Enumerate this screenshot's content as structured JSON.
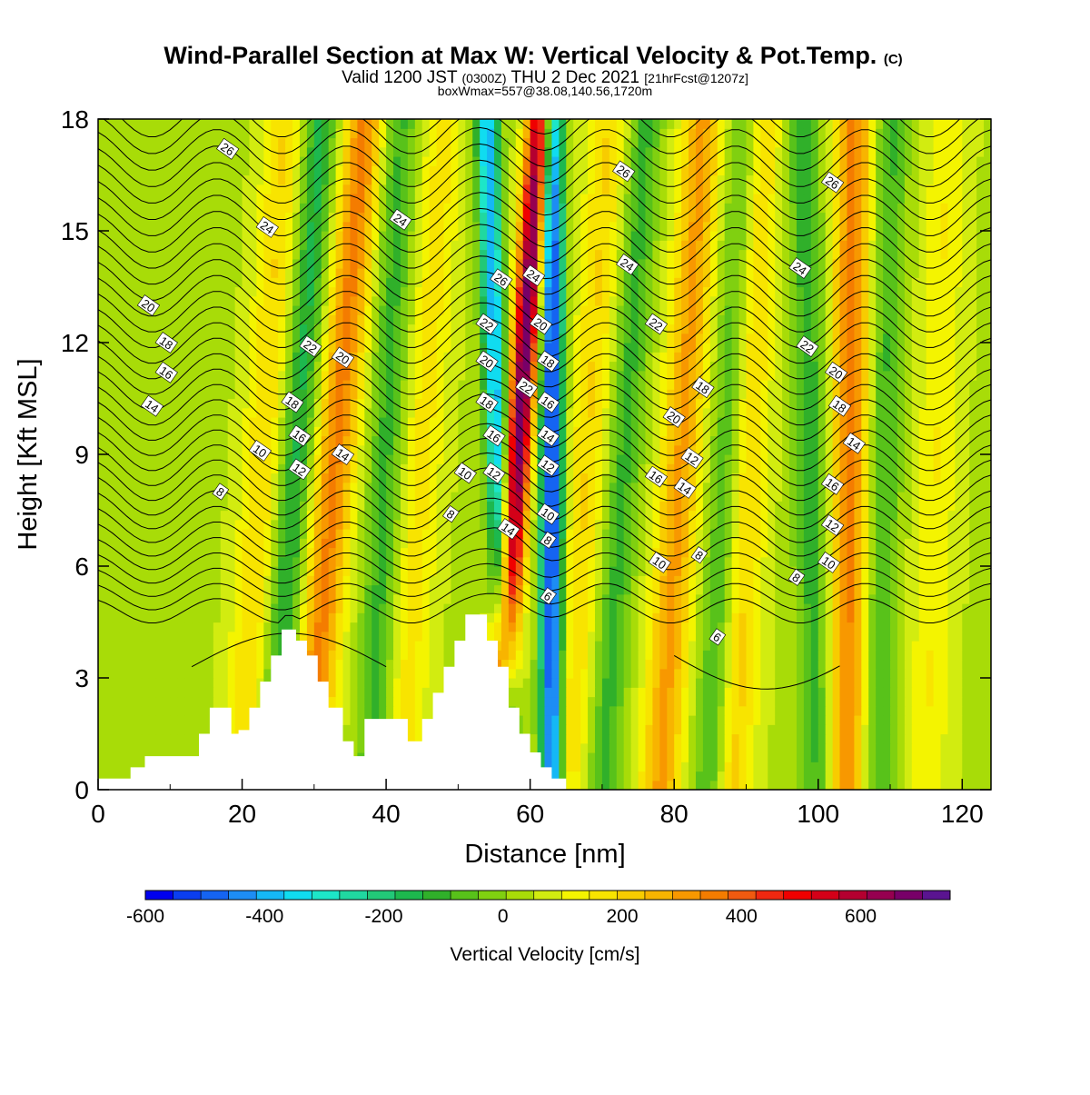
{
  "chart_data": {
    "type": "heatmap",
    "title": "Wind-Parallel Section at Max W: Vertical Velocity & Pot.Temp.",
    "title_mark": "(C)",
    "subtitle": {
      "prefix": "Valid 1200 JST ",
      "utc": "(0300Z)",
      "date": " THU 2 Dec 2021 ",
      "forecast": "[21hrFcst@1207z]"
    },
    "subtitle2": "boxWmax=557@38.08,140.56,1720m",
    "xlabel": "Distance [nm]",
    "ylabel": "Height [Kft MSL]",
    "xlim": [
      0,
      124
    ],
    "ylim": [
      0,
      18
    ],
    "xticks": [
      0,
      20,
      40,
      60,
      80,
      100,
      120
    ],
    "yticks": [
      0,
      3,
      6,
      9,
      12,
      15,
      18
    ],
    "colorbar": {
      "label": "Vertical Velocity [cm/s]",
      "range": [
        -600,
        750
      ],
      "ticks": [
        -600,
        -400,
        -200,
        0,
        200,
        400,
        600
      ],
      "colors": [
        "#0000ee",
        "#0b3ef0",
        "#1564f2",
        "#1d8df4",
        "#15b8f5",
        "#10dcf0",
        "#1de6c8",
        "#20d8a0",
        "#22c878",
        "#1db84e",
        "#30b02a",
        "#58c21a",
        "#80d010",
        "#a8dc08",
        "#d2ec10",
        "#f4f400",
        "#f8e400",
        "#f8cc00",
        "#f8b400",
        "#f89800",
        "#f47c00",
        "#f05a10",
        "#f02810",
        "#f00000",
        "#d40018",
        "#b40030",
        "#960050",
        "#780068",
        "#5a1490"
      ]
    },
    "updraft_bands": [
      {
        "x_surface": 20,
        "x_top": 26,
        "peak": 150
      },
      {
        "x_surface": 29,
        "x_top": 37,
        "peak": 300
      },
      {
        "x_surface": 42,
        "x_top": 48,
        "peak": 120
      },
      {
        "x_surface": 55,
        "x_top": 61.5,
        "peak": 650
      },
      {
        "x_surface": 65,
        "x_top": 71,
        "peak": 150
      },
      {
        "x_surface": 78,
        "x_top": 84,
        "peak": 250
      },
      {
        "x_surface": 88,
        "x_top": 92,
        "peak": 180
      },
      {
        "x_surface": 104,
        "x_top": 105,
        "peak": 300
      },
      {
        "x_surface": 115,
        "x_top": 118,
        "peak": 100
      }
    ],
    "downdraft_bands": [
      {
        "x_surface": 24,
        "x_top": 31,
        "peak": -200
      },
      {
        "x_surface": 38,
        "x_top": 42,
        "peak": -150
      },
      {
        "x_surface": 57,
        "x_top": 54,
        "peak": -450
      },
      {
        "x_surface": 63,
        "x_top": 63,
        "peak": -600
      },
      {
        "x_surface": 70,
        "x_top": 76,
        "peak": -150
      },
      {
        "x_surface": 85,
        "x_top": 90,
        "peak": -170
      },
      {
        "x_surface": 100,
        "x_top": 98,
        "peak": -160
      },
      {
        "x_surface": 108,
        "x_top": 110,
        "peak": -150
      }
    ],
    "terrain": [
      [
        0,
        0.3
      ],
      [
        4.5,
        0.3
      ],
      [
        4.5,
        0.6
      ],
      [
        6.5,
        0.6
      ],
      [
        6.5,
        0.9
      ],
      [
        14,
        0.9
      ],
      [
        14,
        1.5
      ],
      [
        15.5,
        1.5
      ],
      [
        15.5,
        2.2
      ],
      [
        18.5,
        2.2
      ],
      [
        18.5,
        1.5
      ],
      [
        19.5,
        1.5
      ],
      [
        19.5,
        1.6
      ],
      [
        21,
        1.6
      ],
      [
        21,
        2.2
      ],
      [
        22.5,
        2.2
      ],
      [
        22.5,
        2.9
      ],
      [
        24,
        2.9
      ],
      [
        24,
        3.6
      ],
      [
        25.5,
        3.6
      ],
      [
        25.5,
        4.3
      ],
      [
        27.5,
        4.3
      ],
      [
        27.5,
        4.0
      ],
      [
        29,
        4.0
      ],
      [
        29,
        3.6
      ],
      [
        30.5,
        3.6
      ],
      [
        30.5,
        2.9
      ],
      [
        32,
        2.9
      ],
      [
        32,
        2.2
      ],
      [
        34,
        2.2
      ],
      [
        34,
        1.3
      ],
      [
        35.5,
        1.3
      ],
      [
        35.5,
        0.9
      ],
      [
        37,
        0.9
      ],
      [
        37,
        1.9
      ],
      [
        43,
        1.9
      ],
      [
        43,
        1.3
      ],
      [
        45,
        1.3
      ],
      [
        45,
        1.9
      ],
      [
        46.5,
        1.9
      ],
      [
        46.5,
        2.6
      ],
      [
        48,
        2.6
      ],
      [
        48,
        3.3
      ],
      [
        49.5,
        3.3
      ],
      [
        49.5,
        4.0
      ],
      [
        51,
        4.0
      ],
      [
        51,
        4.7
      ],
      [
        54,
        4.7
      ],
      [
        54,
        4.0
      ],
      [
        55.5,
        4.0
      ],
      [
        55.5,
        3.3
      ],
      [
        57,
        3.3
      ],
      [
        57,
        2.2
      ],
      [
        58.5,
        2.2
      ],
      [
        58.5,
        1.5
      ],
      [
        60,
        1.5
      ],
      [
        60,
        1.0
      ],
      [
        61.5,
        1.0
      ],
      [
        61.5,
        0.6
      ],
      [
        63,
        0.6
      ],
      [
        63,
        0.3
      ],
      [
        65,
        0.3
      ],
      [
        65,
        0
      ],
      [
        124,
        0
      ],
      [
        124,
        0.3
      ]
    ],
    "isentrope_labels": [
      {
        "x": 18,
        "y": 17.2,
        "text": "26"
      },
      {
        "x": 23.5,
        "y": 15.1,
        "text": "24"
      },
      {
        "x": 42,
        "y": 15.3,
        "text": "24"
      },
      {
        "x": 7,
        "y": 13.0,
        "text": "20"
      },
      {
        "x": 9.5,
        "y": 12.0,
        "text": "18"
      },
      {
        "x": 9.5,
        "y": 11.2,
        "text": "16"
      },
      {
        "x": 7.5,
        "y": 10.3,
        "text": "14"
      },
      {
        "x": 29.5,
        "y": 11.9,
        "text": "22"
      },
      {
        "x": 34,
        "y": 11.6,
        "text": "20"
      },
      {
        "x": 27,
        "y": 10.4,
        "text": "18"
      },
      {
        "x": 28,
        "y": 9.5,
        "text": "16"
      },
      {
        "x": 34,
        "y": 9.0,
        "text": "14"
      },
      {
        "x": 22.5,
        "y": 9.1,
        "text": "10"
      },
      {
        "x": 28,
        "y": 8.6,
        "text": "12"
      },
      {
        "x": 17,
        "y": 8.0,
        "text": "8"
      },
      {
        "x": 51,
        "y": 8.5,
        "text": "10"
      },
      {
        "x": 49,
        "y": 7.4,
        "text": "8"
      },
      {
        "x": 56,
        "y": 13.7,
        "text": "26"
      },
      {
        "x": 60.5,
        "y": 13.8,
        "text": "24"
      },
      {
        "x": 54,
        "y": 12.5,
        "text": "22"
      },
      {
        "x": 61.5,
        "y": 12.5,
        "text": "20"
      },
      {
        "x": 54,
        "y": 11.5,
        "text": "20"
      },
      {
        "x": 62.5,
        "y": 11.5,
        "text": "18"
      },
      {
        "x": 54,
        "y": 10.4,
        "text": "18"
      },
      {
        "x": 59.5,
        "y": 10.8,
        "text": "22"
      },
      {
        "x": 62.5,
        "y": 10.4,
        "text": "16"
      },
      {
        "x": 55,
        "y": 9.5,
        "text": "16"
      },
      {
        "x": 62.5,
        "y": 9.5,
        "text": "14"
      },
      {
        "x": 55,
        "y": 8.5,
        "text": "12"
      },
      {
        "x": 62.5,
        "y": 8.7,
        "text": "12"
      },
      {
        "x": 57,
        "y": 7.0,
        "text": "14"
      },
      {
        "x": 62.5,
        "y": 7.4,
        "text": "10"
      },
      {
        "x": 62.5,
        "y": 6.7,
        "text": "8"
      },
      {
        "x": 62.5,
        "y": 5.2,
        "text": "6"
      },
      {
        "x": 73,
        "y": 16.6,
        "text": "26"
      },
      {
        "x": 73.5,
        "y": 14.1,
        "text": "24"
      },
      {
        "x": 77.5,
        "y": 12.5,
        "text": "22"
      },
      {
        "x": 80,
        "y": 10.0,
        "text": "20"
      },
      {
        "x": 84,
        "y": 10.8,
        "text": "18"
      },
      {
        "x": 77.5,
        "y": 8.4,
        "text": "16"
      },
      {
        "x": 82.5,
        "y": 8.9,
        "text": "12"
      },
      {
        "x": 81.5,
        "y": 8.1,
        "text": "14"
      },
      {
        "x": 78,
        "y": 6.1,
        "text": "10"
      },
      {
        "x": 83.5,
        "y": 6.3,
        "text": "8"
      },
      {
        "x": 86,
        "y": 4.1,
        "text": "6"
      },
      {
        "x": 102,
        "y": 16.3,
        "text": "26"
      },
      {
        "x": 97.5,
        "y": 14.0,
        "text": "24"
      },
      {
        "x": 98.5,
        "y": 11.9,
        "text": "22"
      },
      {
        "x": 102.5,
        "y": 11.2,
        "text": "20"
      },
      {
        "x": 103,
        "y": 10.3,
        "text": "18"
      },
      {
        "x": 105,
        "y": 9.3,
        "text": "14"
      },
      {
        "x": 102,
        "y": 8.2,
        "text": "16"
      },
      {
        "x": 102,
        "y": 7.1,
        "text": "12"
      },
      {
        "x": 101.5,
        "y": 6.1,
        "text": "10"
      },
      {
        "x": 97,
        "y": 5.7,
        "text": "8"
      }
    ]
  }
}
